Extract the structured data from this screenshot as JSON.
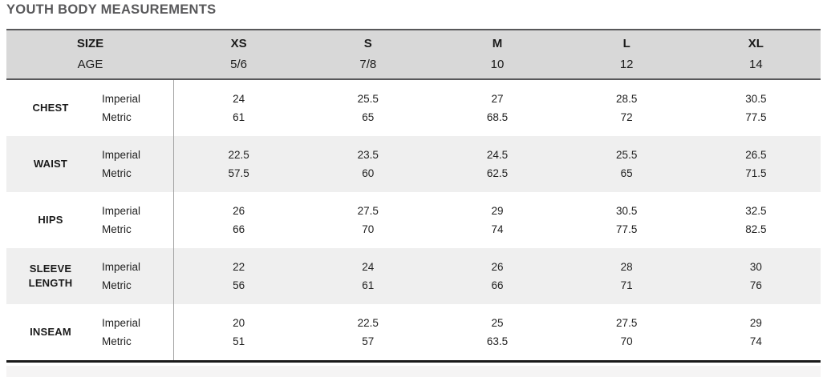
{
  "page": {
    "title": "YOUTH BODY MEASUREMENTS"
  },
  "colors": {
    "title_text": "#58585a",
    "header_bg": "#d8d8d8",
    "border_dark": "#58585a",
    "alt_row_bg": "#efefef",
    "divider": "#a3a3a3",
    "bottom_border": "#1a1a1a",
    "body_text": "#1f1f1f",
    "footer_strip_bg": "#f5f4f4"
  },
  "table": {
    "header": {
      "col1_line1": "SIZE",
      "col1_line2": "AGE",
      "sizes": [
        {
          "size": "XS",
          "age": "5/6"
        },
        {
          "size": "S",
          "age": "7/8"
        },
        {
          "size": "M",
          "age": "10"
        },
        {
          "size": "L",
          "age": "12"
        },
        {
          "size": "XL",
          "age": "14"
        }
      ]
    },
    "unit_labels": [
      "Imperial",
      "Metric"
    ],
    "rows": [
      {
        "label": "CHEST",
        "imperial": [
          "24",
          "25.5",
          "27",
          "28.5",
          "30.5"
        ],
        "metric": [
          "61",
          "65",
          "68.5",
          "72",
          "77.5"
        ]
      },
      {
        "label": "WAIST",
        "imperial": [
          "22.5",
          "23.5",
          "24.5",
          "25.5",
          "26.5"
        ],
        "metric": [
          "57.5",
          "60",
          "62.5",
          "65",
          "71.5"
        ]
      },
      {
        "label": "HIPS",
        "imperial": [
          "26",
          "27.5",
          "29",
          "30.5",
          "32.5"
        ],
        "metric": [
          "66",
          "70",
          "74",
          "77.5",
          "82.5"
        ]
      },
      {
        "label": "SLEEVE LENGTH",
        "imperial": [
          "22",
          "24",
          "26",
          "28",
          "30"
        ],
        "metric": [
          "56",
          "61",
          "66",
          "71",
          "76"
        ]
      },
      {
        "label": "INSEAM",
        "imperial": [
          "20",
          "22.5",
          "25",
          "27.5",
          "29"
        ],
        "metric": [
          "51",
          "57",
          "63.5",
          "70",
          "74"
        ]
      }
    ]
  },
  "chart_data": {
    "type": "table",
    "title": "YOUTH BODY MEASUREMENTS",
    "columns": [
      "SIZE / AGE",
      "XS 5/6",
      "S 7/8",
      "M 10",
      "L 12",
      "XL 14"
    ],
    "rows": [
      {
        "measurement": "CHEST",
        "imperial": [
          24,
          25.5,
          27,
          28.5,
          30.5
        ],
        "metric": [
          61,
          65,
          68.5,
          72,
          77.5
        ]
      },
      {
        "measurement": "WAIST",
        "imperial": [
          22.5,
          23.5,
          24.5,
          25.5,
          26.5
        ],
        "metric": [
          57.5,
          60,
          62.5,
          65,
          71.5
        ]
      },
      {
        "measurement": "HIPS",
        "imperial": [
          26,
          27.5,
          29,
          30.5,
          32.5
        ],
        "metric": [
          66,
          70,
          74,
          77.5,
          82.5
        ]
      },
      {
        "measurement": "SLEEVE LENGTH",
        "imperial": [
          22,
          24,
          26,
          28,
          30
        ],
        "metric": [
          56,
          61,
          66,
          71,
          76
        ]
      },
      {
        "measurement": "INSEAM",
        "imperial": [
          20,
          22.5,
          25,
          27.5,
          29
        ],
        "metric": [
          51,
          57,
          63.5,
          70,
          74
        ]
      }
    ]
  }
}
